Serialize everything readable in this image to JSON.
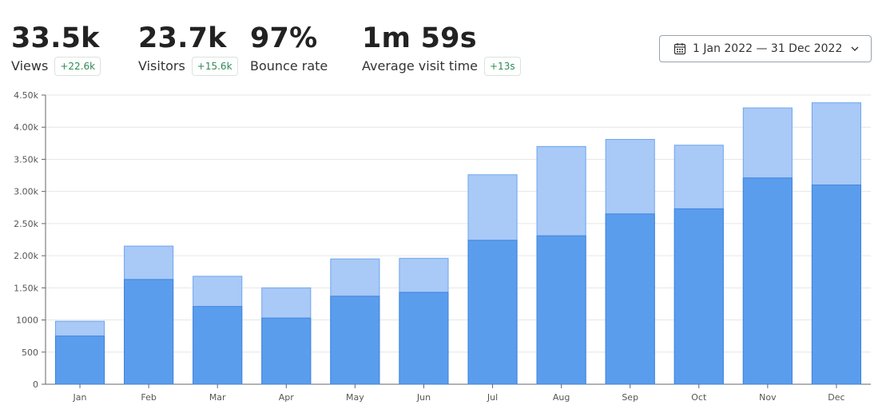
{
  "stats": [
    {
      "value": "33.5k",
      "label": "Views",
      "delta": "+22.6k"
    },
    {
      "value": "23.7k",
      "label": "Visitors",
      "delta": "+15.6k"
    },
    {
      "value": "97%",
      "label": "Bounce rate",
      "delta": ""
    },
    {
      "value": "1m 59s",
      "label": "Average visit time",
      "delta": "+13s"
    }
  ],
  "date_range": {
    "label": "1 Jan 2022 — 31 Dec 2022",
    "icon": "calendar-icon",
    "chevron_icon": "chevron-down-icon"
  },
  "colors": {
    "views": "#a9c9f7",
    "views_border": "#6ea5ec",
    "visitors": "#5b9ded",
    "visitors_border": "#3d83de",
    "grid": "#e6e6e6",
    "delta_text": "#2e8a57"
  },
  "chart_data": {
    "type": "bar",
    "stacking": "overlay",
    "categories": [
      "Jan",
      "Feb",
      "Mar",
      "Apr",
      "May",
      "Jun",
      "Jul",
      "Aug",
      "Sep",
      "Oct",
      "Nov",
      "Dec"
    ],
    "series": [
      {
        "values": [
          980,
          2150,
          1680,
          1500,
          1950,
          1960,
          3260,
          3700,
          3810,
          3720,
          4300,
          4380
        ]
      },
      {
        "values": [
          750,
          1630,
          1210,
          1030,
          1370,
          1430,
          2240,
          2310,
          2650,
          2730,
          3210,
          3100
        ]
      }
    ],
    "yticks": [
      "0",
      "500",
      "1000",
      "1.50k",
      "2.00k",
      "2.50k",
      "3.00k",
      "3.50k",
      "4.00k",
      "4.50k"
    ],
    "ylim": [
      0,
      4500
    ],
    "grid": true,
    "title": "",
    "xlabel": "",
    "ylabel": ""
  }
}
